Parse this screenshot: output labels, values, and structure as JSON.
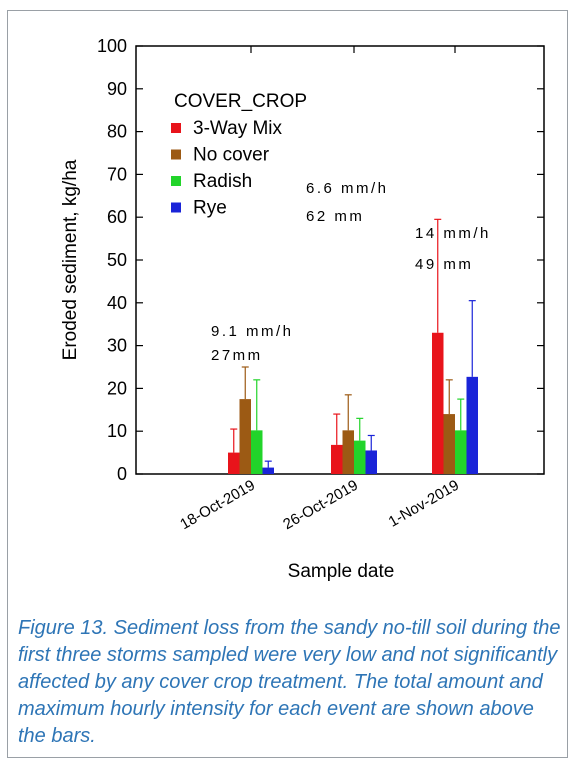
{
  "chart_data": {
    "type": "bar",
    "title": "",
    "xlabel": "Sample date",
    "ylabel": "Eroded sediment, kg/ha",
    "ylim": [
      0,
      100
    ],
    "yticks": [
      "0",
      "10",
      "20",
      "30",
      "40",
      "50",
      "60",
      "70",
      "80",
      "90",
      "100"
    ],
    "categories": [
      "18-Oct-2019",
      "26-Oct-2019",
      "1-Nov-2019"
    ],
    "legend_title": "COVER_CROP",
    "legend_position": "top-left",
    "grid": false,
    "series": [
      {
        "name": "3-Way Mix",
        "color": "#e8141b",
        "values": [
          5,
          6.8,
          33
        ],
        "error_upper": [
          10.5,
          14,
          59.5
        ]
      },
      {
        "name": "No cover",
        "color": "#9c5a14",
        "values": [
          17.5,
          10.2,
          14
        ],
        "error_upper": [
          25,
          18.5,
          22
        ]
      },
      {
        "name": "Radish",
        "color": "#22d42a",
        "values": [
          10.2,
          7.8,
          10.2
        ],
        "error_upper": [
          22,
          13,
          17.5
        ]
      },
      {
        "name": "Rye",
        "color": "#1a24d8",
        "values": [
          1.5,
          5.5,
          22.7
        ],
        "error_upper": [
          3,
          9,
          40.5
        ]
      }
    ],
    "annotations": [
      {
        "category": "18-Oct-2019",
        "intensity": "9.1 mm/h",
        "total": "27mm"
      },
      {
        "category": "26-Oct-2019",
        "intensity": "6.6 mm/h",
        "total": "62 mm"
      },
      {
        "category": "1-Nov-2019",
        "intensity": "14 mm/h",
        "total": "49 mm"
      }
    ]
  },
  "caption": "Figure 13. Sediment loss from the sandy no-till soil during the first three storms sampled were very low and not significantly affected by any cover crop treatment. The total amount and maximum hourly intensity for each event are shown above the bars."
}
